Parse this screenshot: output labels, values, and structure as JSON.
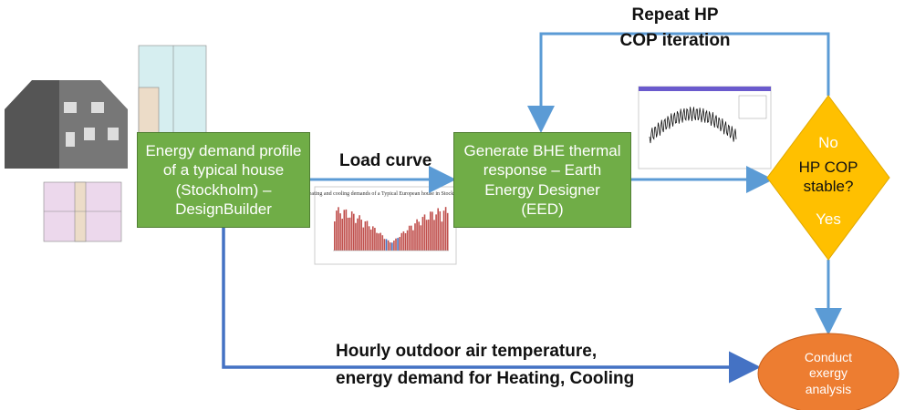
{
  "nodes": [
    {
      "label": "Energy demand profile of a typical house (Stockholm) – DesignBuilder"
    },
    {
      "label": "Generate BHE thermal response – Earth Energy Designer (EED)"
    },
    {
      "label_no": "No",
      "label": "HP COP stable?",
      "label_yes": "Yes"
    },
    {
      "label": "Conduct exergy analysis"
    }
  ],
  "edges": [
    {
      "label": "Load curve"
    },
    {
      "label": [
        "Repeat HP",
        "COP iteration"
      ]
    },
    {
      "label": [
        "Hourly outdoor air temperature,",
        "energy demand for Heating, Cooling"
      ]
    }
  ],
  "thumbnail": {
    "title": "Heating and cooling demands of a Typical European house in Stockholm"
  }
}
